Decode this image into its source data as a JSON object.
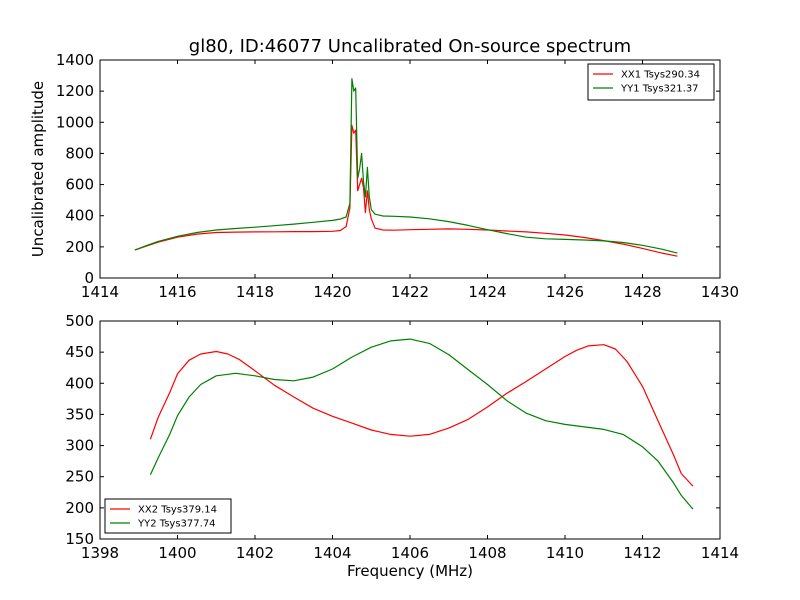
{
  "figure": {
    "title": "gl80, ID:46077 Uncalibrated On-source spectrum",
    "xlabel": "Frequency (MHz)"
  },
  "colors": {
    "red": "#ff0000",
    "green": "#008000"
  },
  "chart_data": [
    {
      "type": "line",
      "title": "gl80, ID:46077 Uncalibrated On-source spectrum",
      "xlabel": "",
      "ylabel": "Uncalibrated amplitude",
      "xlim": [
        1414,
        1430
      ],
      "ylim": [
        0,
        1400
      ],
      "xticks": [
        1414,
        1416,
        1418,
        1420,
        1422,
        1424,
        1426,
        1428,
        1430
      ],
      "yticks": [
        0,
        200,
        400,
        600,
        800,
        1000,
        1200,
        1400
      ],
      "grid": false,
      "legend_position": "upper right",
      "series": [
        {
          "name": "XX1 Tsys290.34",
          "color": "#ff0000",
          "x": [
            1414.9,
            1415.2,
            1415.5,
            1416.0,
            1416.5,
            1417.0,
            1417.5,
            1418.0,
            1418.5,
            1419.0,
            1419.5,
            1420.0,
            1420.2,
            1420.35,
            1420.45,
            1420.5,
            1420.55,
            1420.6,
            1420.65,
            1420.7,
            1420.75,
            1420.8,
            1420.85,
            1420.9,
            1420.95,
            1421.0,
            1421.1,
            1421.3,
            1421.6,
            1422.0,
            1422.5,
            1423.0,
            1423.5,
            1424.0,
            1424.5,
            1425.0,
            1425.5,
            1426.0,
            1426.5,
            1427.0,
            1427.5,
            1428.0,
            1428.5,
            1428.9
          ],
          "y": [
            180,
            205,
            230,
            262,
            282,
            292,
            295,
            296,
            297,
            298,
            298,
            300,
            305,
            330,
            450,
            980,
            930,
            950,
            560,
            600,
            640,
            580,
            420,
            560,
            440,
            380,
            320,
            308,
            307,
            310,
            313,
            315,
            313,
            308,
            302,
            296,
            287,
            276,
            260,
            240,
            218,
            190,
            160,
            140
          ]
        },
        {
          "name": "YY1 Tsys321.37",
          "color": "#008000",
          "x": [
            1414.9,
            1415.2,
            1415.5,
            1416.0,
            1416.5,
            1417.0,
            1417.5,
            1418.0,
            1418.5,
            1419.0,
            1419.5,
            1420.0,
            1420.2,
            1420.35,
            1420.45,
            1420.5,
            1420.55,
            1420.6,
            1420.65,
            1420.7,
            1420.75,
            1420.8,
            1420.85,
            1420.9,
            1420.95,
            1421.0,
            1421.1,
            1421.3,
            1421.6,
            1422.0,
            1422.5,
            1423.0,
            1423.5,
            1424.0,
            1424.5,
            1425.0,
            1425.5,
            1426.0,
            1426.5,
            1427.0,
            1427.5,
            1428.0,
            1428.5,
            1428.9
          ],
          "y": [
            180,
            208,
            235,
            268,
            292,
            308,
            318,
            326,
            336,
            346,
            358,
            370,
            378,
            392,
            480,
            1280,
            1200,
            1220,
            640,
            700,
            800,
            620,
            520,
            710,
            520,
            440,
            410,
            398,
            396,
            392,
            380,
            362,
            338,
            310,
            285,
            262,
            252,
            248,
            244,
            238,
            228,
            210,
            185,
            160
          ]
        }
      ]
    },
    {
      "type": "line",
      "title": "",
      "xlabel": "Frequency (MHz)",
      "ylabel": "",
      "xlim": [
        1398,
        1414
      ],
      "ylim": [
        150,
        500
      ],
      "xticks": [
        1398,
        1400,
        1402,
        1404,
        1406,
        1408,
        1410,
        1412,
        1414
      ],
      "yticks": [
        150,
        200,
        250,
        300,
        350,
        400,
        450,
        500
      ],
      "grid": false,
      "legend_position": "lower left",
      "series": [
        {
          "name": "XX2 Tsys379.14",
          "color": "#ff0000",
          "x": [
            1399.3,
            1399.5,
            1399.8,
            1400.0,
            1400.3,
            1400.6,
            1401.0,
            1401.3,
            1401.6,
            1402.0,
            1402.5,
            1403.0,
            1403.5,
            1404.0,
            1404.5,
            1405.0,
            1405.5,
            1406.0,
            1406.5,
            1407.0,
            1407.5,
            1408.0,
            1408.5,
            1409.0,
            1409.5,
            1410.0,
            1410.3,
            1410.6,
            1411.0,
            1411.3,
            1411.6,
            1412.0,
            1412.4,
            1412.8,
            1413.0,
            1413.3
          ],
          "y": [
            310,
            345,
            385,
            415,
            437,
            447,
            451,
            447,
            438,
            420,
            397,
            378,
            360,
            347,
            336,
            325,
            318,
            315,
            318,
            328,
            342,
            362,
            384,
            403,
            423,
            443,
            453,
            460,
            462,
            455,
            435,
            395,
            340,
            285,
            255,
            235
          ]
        },
        {
          "name": "YY2 Tsys377.74",
          "color": "#008000",
          "x": [
            1399.3,
            1399.5,
            1399.8,
            1400.0,
            1400.3,
            1400.6,
            1401.0,
            1401.5,
            1402.0,
            1402.5,
            1403.0,
            1403.5,
            1404.0,
            1404.5,
            1405.0,
            1405.5,
            1406.0,
            1406.5,
            1407.0,
            1407.5,
            1408.0,
            1408.5,
            1409.0,
            1409.5,
            1410.0,
            1410.5,
            1411.0,
            1411.5,
            1412.0,
            1412.4,
            1412.8,
            1413.0,
            1413.3
          ],
          "y": [
            253,
            280,
            318,
            348,
            378,
            398,
            412,
            416,
            412,
            406,
            404,
            410,
            423,
            442,
            458,
            468,
            471,
            464,
            446,
            422,
            398,
            372,
            352,
            340,
            334,
            330,
            326,
            318,
            298,
            275,
            240,
            220,
            198
          ]
        }
      ]
    }
  ]
}
